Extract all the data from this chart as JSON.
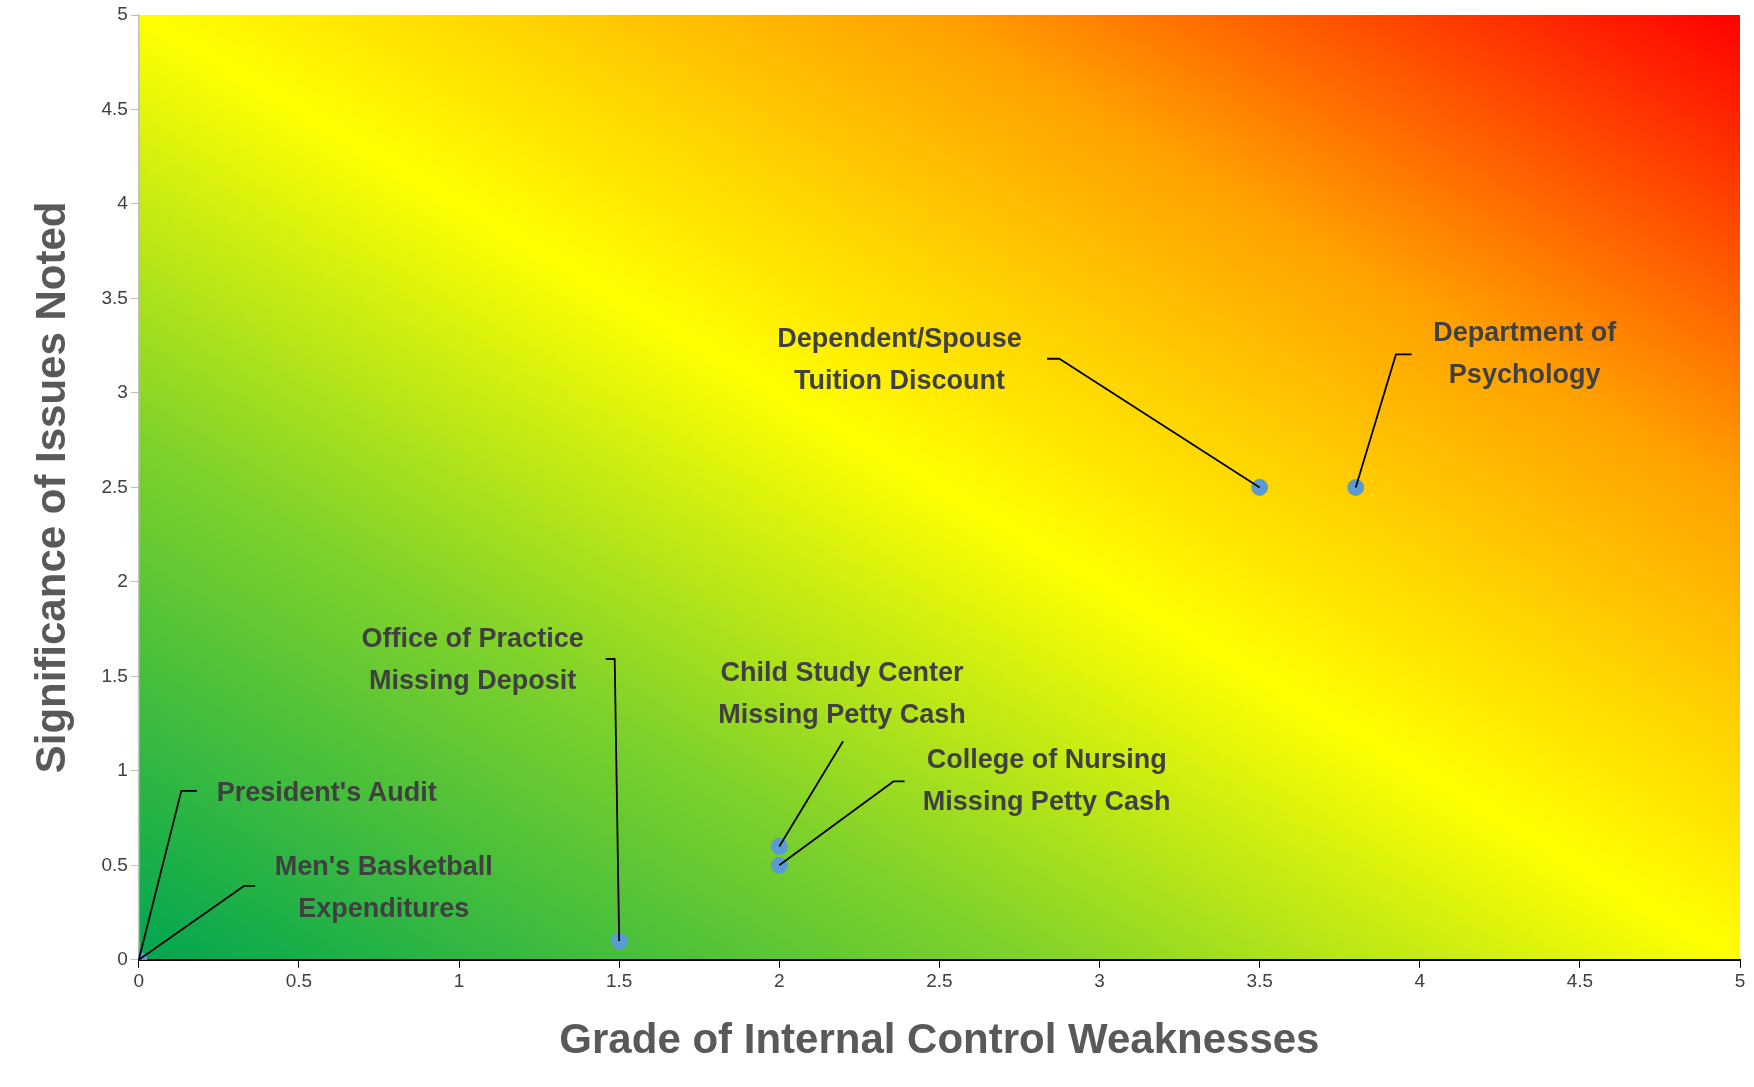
{
  "chart_data": {
    "type": "scatter",
    "xlabel": "Grade of Internal Control Weaknesses",
    "ylabel": "Significance of Issues Noted",
    "x": [
      0,
      0,
      1.5,
      2,
      2,
      3.5,
      3.8
    ],
    "values": [
      0,
      0,
      0.1,
      0.6,
      0.5,
      2.5,
      2.5
    ],
    "color": "#5b9bd5",
    "marker": "circle",
    "legend": false,
    "grid": false,
    "xlim": [
      0,
      5
    ],
    "xticks": [
      0,
      0.5,
      1,
      1.5,
      2,
      2.5,
      3,
      3.5,
      4,
      4.5,
      5
    ],
    "ylim": [
      0,
      5
    ],
    "yticks": [
      0,
      0.5,
      1,
      1.5,
      2,
      2.5,
      3,
      3.5,
      4,
      4.5,
      5
    ],
    "annotations": [
      {
        "text": "President's Audit",
        "x": 0,
        "y": 0
      },
      {
        "text": "Men's Basketball Expenditures",
        "x": 0,
        "y": 0
      },
      {
        "text": "Office of Practice Missing Deposit",
        "x": 1.5,
        "y": 0.1
      },
      {
        "text": "Child Study Center Missing Petty Cash",
        "x": 2,
        "y": 0.6
      },
      {
        "text": "College of Nursing Missing Petty Cash",
        "x": 2,
        "y": 0.5
      },
      {
        "text": "Dependent/Spouse Tuition Discount",
        "x": 3.5,
        "y": 2.5
      },
      {
        "text": "Department of Psychology",
        "x": 3.8,
        "y": 2.5
      }
    ]
  }
}
